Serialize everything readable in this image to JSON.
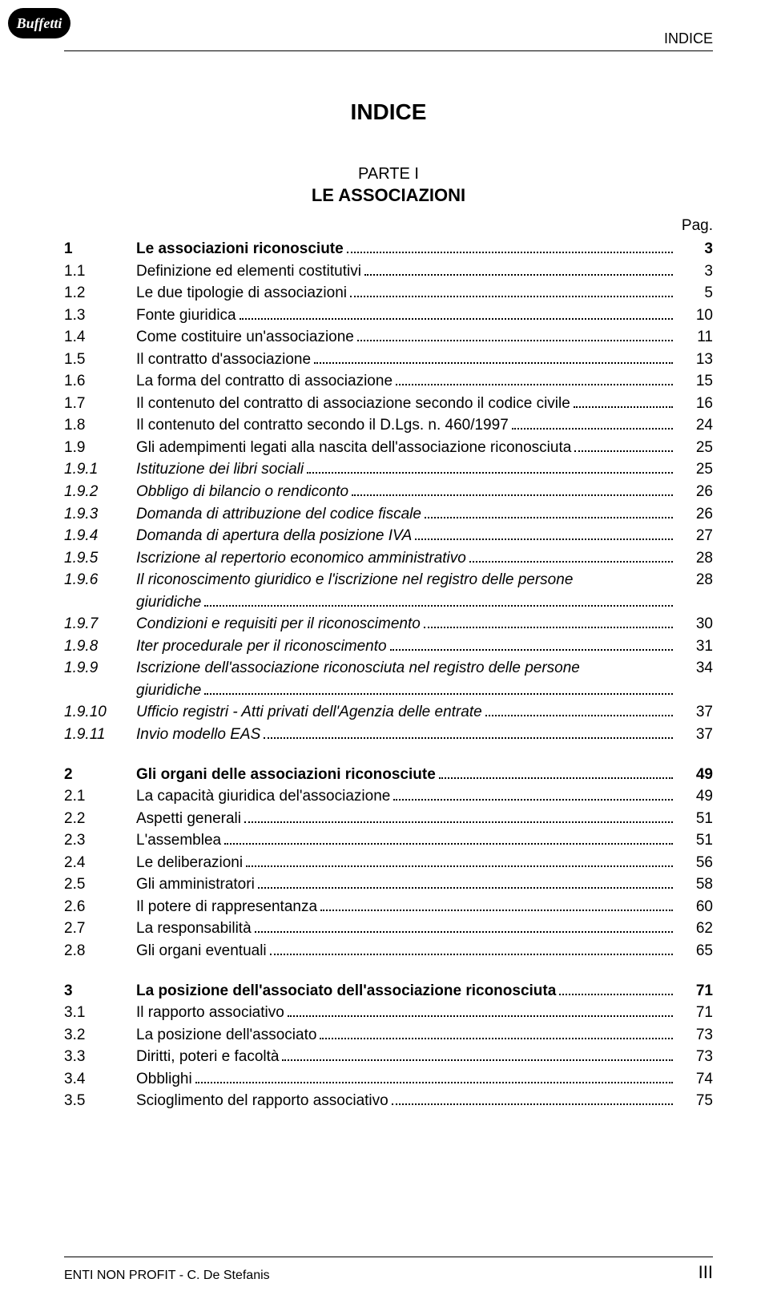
{
  "logo_text": "Buffetti",
  "header": "INDICE",
  "title": "INDICE",
  "part_label": "PARTE I",
  "part_title": "LE ASSOCIAZIONI",
  "pag_label": "Pag.",
  "footer_left": "ENTI NON PROFIT - C. De Stefanis",
  "footer_right": "III",
  "entries": [
    {
      "num": "1",
      "text": "Le associazioni riconosciute",
      "page": "3",
      "bold": true
    },
    {
      "num": "1.1",
      "text": "Definizione ed elementi costitutivi",
      "page": "3"
    },
    {
      "num": "1.2",
      "text": "Le due tipologie di associazioni",
      "page": "5"
    },
    {
      "num": "1.3",
      "text": "Fonte giuridica",
      "page": "10"
    },
    {
      "num": "1.4",
      "text": "Come costituire un'associazione",
      "page": "11"
    },
    {
      "num": "1.5",
      "text": "Il contratto d'associazione",
      "page": "13"
    },
    {
      "num": "1.6",
      "text": "La forma del contratto di associazione",
      "page": "15"
    },
    {
      "num": "1.7",
      "text": "Il contenuto del contratto di associazione secondo il codice civile",
      "page": "16"
    },
    {
      "num": "1.8",
      "text": "Il contenuto del contratto secondo il D.Lgs. n. 460/1997",
      "page": "24"
    },
    {
      "num": "1.9",
      "text": "Gli adempimenti legati alla nascita dell'associazione riconosciuta",
      "page": "25"
    },
    {
      "num": "1.9.1",
      "text": "Istituzione dei libri sociali",
      "page": "25",
      "italic": true
    },
    {
      "num": "1.9.2",
      "text": "Obbligo di bilancio o rendiconto",
      "page": "26",
      "italic": true
    },
    {
      "num": "1.9.3",
      "text": "Domanda di attribuzione del codice fiscale",
      "page": "26",
      "italic": true
    },
    {
      "num": "1.9.4",
      "text": "Domanda di apertura della posizione IVA",
      "page": "27",
      "italic": true
    },
    {
      "num": "1.9.5",
      "text": "Iscrizione al repertorio economico amministrativo",
      "page": "28",
      "italic": true
    },
    {
      "num": "1.9.6",
      "text": "Il riconoscimento giuridico e l'iscrizione nel registro delle persone",
      "text2": "giuridiche",
      "page": "28",
      "italic": true,
      "wrap": true
    },
    {
      "num": "1.9.7",
      "text": "Condizioni e requisiti per il riconoscimento",
      "page": "30",
      "italic": true
    },
    {
      "num": "1.9.8",
      "text": "Iter procedurale per il riconoscimento",
      "page": "31",
      "italic": true
    },
    {
      "num": "1.9.9",
      "text": "Iscrizione dell'associazione riconosciuta nel registro delle persone",
      "text2": "giuridiche",
      "page": "34",
      "italic": true,
      "wrap": true
    },
    {
      "num": "1.9.10",
      "text": "Ufficio registri - Atti privati dell'Agenzia delle entrate",
      "page": "37",
      "italic": true
    },
    {
      "num": "1.9.11",
      "text": "Invio modello EAS",
      "page": "37",
      "italic": true
    },
    {
      "gap": true
    },
    {
      "num": "2",
      "text": "Gli organi delle associazioni riconosciute",
      "page": "49",
      "bold": true
    },
    {
      "num": "2.1",
      "text": "La capacità giuridica del'associazione",
      "page": "49"
    },
    {
      "num": "2.2",
      "text": "Aspetti generali",
      "page": "51"
    },
    {
      "num": "2.3",
      "text": "L'assemblea",
      "page": "51"
    },
    {
      "num": "2.4",
      "text": "Le deliberazioni",
      "page": "56"
    },
    {
      "num": "2.5",
      "text": "Gli amministratori",
      "page": "58"
    },
    {
      "num": "2.6",
      "text": "Il potere di rappresentanza",
      "page": "60"
    },
    {
      "num": "2.7",
      "text": "La responsabilità",
      "page": "62"
    },
    {
      "num": "2.8",
      "text": "Gli organi eventuali",
      "page": "65"
    },
    {
      "gap": true
    },
    {
      "num": "3",
      "text": "La posizione dell'associato dell'associazione riconosciuta",
      "page": "71",
      "bold": true
    },
    {
      "num": "3.1",
      "text": "Il rapporto associativo",
      "page": "71"
    },
    {
      "num": "3.2",
      "text": "La posizione dell'associato",
      "page": "73"
    },
    {
      "num": "3.3",
      "text": "Diritti, poteri e facoltà",
      "page": "73"
    },
    {
      "num": "3.4",
      "text": "Obblighi",
      "page": "74"
    },
    {
      "num": "3.5",
      "text": "Scioglimento del rapporto associativo",
      "page": "75"
    }
  ]
}
